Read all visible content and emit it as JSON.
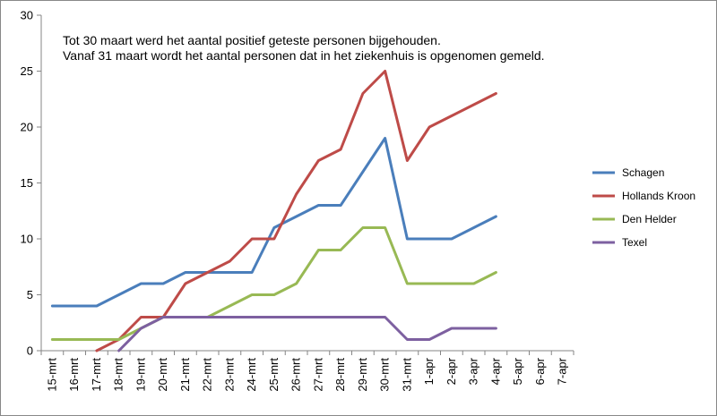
{
  "chart_data": {
    "type": "line",
    "title": "",
    "xlabel": "",
    "ylabel": "",
    "ylim": [
      0,
      30
    ],
    "yticks": [
      0,
      5,
      10,
      15,
      20,
      25,
      30
    ],
    "grid": false,
    "legend_position": "right",
    "annotations": [
      "Tot 30 maart werd het aantal positief geteste personen bijgehouden.",
      "Vanaf 31 maart wordt het aantal personen dat in het ziekenhuis is opgenomen gemeld."
    ],
    "categories": [
      "15-mrt",
      "16-mrt",
      "17-mrt",
      "18-mrt",
      "19-mrt",
      "20-mrt",
      "21-mrt",
      "22-mrt",
      "23-mrt",
      "24-mrt",
      "25-mrt",
      "26-mrt",
      "27-mrt",
      "28-mrt",
      "29-mrt",
      "30-mrt",
      "31-mrt",
      "1-apr",
      "2-apr",
      "3-apr",
      "4-apr",
      "5-apr",
      "6-apr",
      "7-apr"
    ],
    "series": [
      {
        "name": "Schagen",
        "color": "#4a7ebb",
        "values": [
          4,
          4,
          4,
          5,
          6,
          6,
          7,
          7,
          7,
          7,
          11,
          12,
          13,
          13,
          16,
          19,
          10,
          10,
          10,
          11,
          12,
          null,
          null,
          null
        ]
      },
      {
        "name": "Hollands Kroon",
        "color": "#be4b48",
        "values": [
          null,
          null,
          0,
          1,
          3,
          3,
          6,
          7,
          8,
          10,
          10,
          14,
          17,
          18,
          23,
          25,
          17,
          20,
          21,
          22,
          23,
          null,
          null,
          null
        ]
      },
      {
        "name": "Den Helder",
        "color": "#98b954",
        "values": [
          1,
          1,
          1,
          1,
          2,
          3,
          3,
          3,
          4,
          5,
          5,
          6,
          9,
          9,
          11,
          11,
          6,
          6,
          6,
          6,
          7,
          null,
          null,
          null
        ]
      },
      {
        "name": "Texel",
        "color": "#7d60a0",
        "values": [
          null,
          null,
          null,
          0,
          2,
          3,
          3,
          3,
          3,
          3,
          3,
          3,
          3,
          3,
          3,
          3,
          1,
          1,
          2,
          2,
          2,
          null,
          null,
          null
        ]
      }
    ]
  }
}
